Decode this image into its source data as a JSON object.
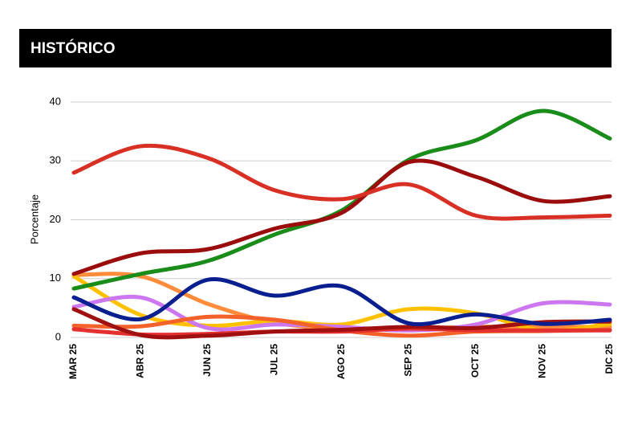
{
  "chart_data": {
    "type": "line",
    "title": "HISTÓRICO",
    "y_label": "Porcentaje",
    "categories": [
      "MAR 25",
      "ABR 25",
      "JUN 25",
      "JUL 25",
      "AGO 25",
      "SEP 25",
      "OCT 25",
      "NOV 25",
      "DIC 25"
    ],
    "ylim": [
      0,
      40
    ],
    "yticks": [
      0,
      10,
      20,
      30,
      40
    ],
    "grid": true,
    "smooth": true,
    "series": [
      {
        "color": "#ff8c3b",
        "values": [
          10.6,
          10.4,
          5.7,
          2.5,
          1.5,
          1.5,
          1.8,
          1.8,
          1.8
        ]
      },
      {
        "color": "#ffc000",
        "values": [
          10.4,
          3.8,
          2.0,
          2.8,
          2.2,
          4.8,
          4.1,
          1.2,
          2.3
        ]
      },
      {
        "color": "#cc77f0",
        "values": [
          5.2,
          6.8,
          1.6,
          2.2,
          1.8,
          1.2,
          2.2,
          5.8,
          5.6
        ]
      },
      {
        "color": "#f4622a",
        "values": [
          2.0,
          1.9,
          3.5,
          3.0,
          1.2,
          0.3,
          1.0,
          1.1,
          1.3
        ]
      },
      {
        "color": "#e53030",
        "values": [
          1.4,
          0.5,
          0.6,
          1.0,
          1.0,
          1.5,
          1.2,
          1.2,
          1.2
        ]
      },
      {
        "color": "#a01010",
        "values": [
          4.8,
          0.4,
          0.3,
          1.0,
          1.3,
          1.8,
          1.6,
          2.6,
          2.7
        ]
      },
      {
        "color": "#0a1f8f",
        "values": [
          6.8,
          3.1,
          9.8,
          7.1,
          8.7,
          2.4,
          3.9,
          2.3,
          3.0
        ]
      },
      {
        "color": "#1a8c1a",
        "values": [
          8.3,
          10.8,
          13.0,
          17.5,
          21.6,
          30.2,
          33.5,
          38.5,
          33.8
        ]
      },
      {
        "color": "#9b0d0d",
        "values": [
          10.8,
          14.3,
          15.0,
          18.5,
          21.2,
          29.8,
          27.3,
          23.2,
          24.0
        ]
      },
      {
        "color": "#d93025",
        "values": [
          28.0,
          32.5,
          30.5,
          25.0,
          23.5,
          26.0,
          20.7,
          20.4,
          20.7
        ]
      }
    ]
  }
}
